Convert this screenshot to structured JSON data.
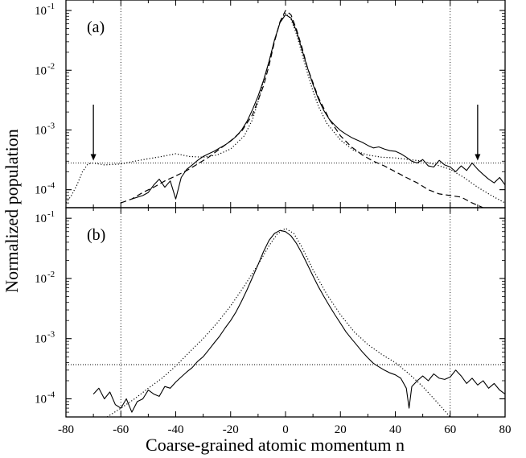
{
  "chart_data": [
    {
      "type": "line",
      "panel_label": "(a)",
      "y_scale": "log",
      "xlim": [
        -80,
        80
      ],
      "ylim": [
        5e-05,
        0.15
      ],
      "y_ticks": [
        "10-1",
        "10-2",
        "10-3",
        "10-4"
      ],
      "vlines": [
        -60,
        60
      ],
      "hline": 0.00028,
      "arrows_at_x": [
        -70,
        70
      ],
      "series": [
        {
          "style": "solid",
          "x": [
            -56,
            -52,
            -50,
            -48,
            -46,
            -44,
            -42,
            -40,
            -38,
            -36,
            -34,
            -32,
            -30,
            -28,
            -26,
            -24,
            -22,
            -20,
            -18,
            -16,
            -14,
            -12,
            -10,
            -8,
            -6,
            -4,
            -2,
            0,
            2,
            4,
            6,
            8,
            10,
            12,
            14,
            16,
            18,
            20,
            22,
            24,
            26,
            28,
            30,
            32,
            34,
            36,
            38,
            40,
            42,
            44,
            46,
            48,
            50,
            52,
            54,
            56,
            58,
            60,
            62,
            64,
            66,
            68,
            70,
            72,
            74,
            76,
            78,
            80
          ],
          "y": [
            7e-05,
            8e-05,
            9e-05,
            0.00012,
            0.00015,
            0.00011,
            0.00014,
            7e-05,
            0.00016,
            0.00022,
            0.00026,
            0.00031,
            0.00036,
            0.0004,
            0.00044,
            0.0005,
            0.00056,
            0.00065,
            0.00078,
            0.001,
            0.0014,
            0.0022,
            0.0037,
            0.0068,
            0.014,
            0.032,
            0.063,
            0.085,
            0.075,
            0.045,
            0.022,
            0.011,
            0.0058,
            0.0033,
            0.0021,
            0.0015,
            0.0012,
            0.00098,
            0.00085,
            0.00075,
            0.00068,
            0.00062,
            0.00055,
            0.0005,
            0.00052,
            0.00048,
            0.00045,
            0.00044,
            0.0004,
            0.00035,
            0.0003,
            0.00028,
            0.00032,
            0.00025,
            0.00024,
            0.00031,
            0.00026,
            0.00024,
            0.0002,
            0.00025,
            0.00021,
            0.00028,
            0.00022,
            0.00018,
            0.00015,
            0.00013,
            0.00016,
            0.00012
          ]
        },
        {
          "style": "dashed",
          "x": [
            -60,
            -56,
            -52,
            -48,
            -44,
            -40,
            -36,
            -32,
            -28,
            -24,
            -20,
            -16,
            -12,
            -8,
            -6,
            -4,
            -2,
            0,
            2,
            4,
            6,
            8,
            12,
            16,
            20,
            24,
            28,
            32,
            36,
            40,
            44,
            48,
            52,
            56,
            60,
            64,
            68,
            72
          ],
          "y": [
            6e-05,
            7e-05,
            9e-05,
            0.00011,
            0.00014,
            0.00017,
            0.00021,
            0.00027,
            0.00035,
            0.00048,
            0.00066,
            0.00095,
            0.0018,
            0.0055,
            0.012,
            0.03,
            0.065,
            0.1,
            0.085,
            0.048,
            0.024,
            0.011,
            0.0035,
            0.0015,
            0.0008,
            0.00052,
            0.00038,
            0.0003,
            0.00025,
            0.0002,
            0.00016,
            0.00013,
            0.0001,
            8.5e-05,
            8e-05,
            7.5e-05,
            6e-05,
            5e-05
          ]
        },
        {
          "style": "dotted",
          "x": [
            -80,
            -78,
            -76,
            -74,
            -72,
            -70,
            -66,
            -60,
            -55,
            -50,
            -45,
            -40,
            -35,
            -30,
            -25,
            -20,
            -15,
            -12,
            -10,
            -8,
            -6,
            -4,
            -2,
            0,
            2,
            4,
            6,
            8,
            10,
            12,
            15,
            20,
            25,
            30,
            35,
            40,
            45,
            50,
            55,
            60,
            65,
            70,
            75,
            80
          ],
          "y": [
            6e-05,
            8e-05,
            0.00012,
            0.0002,
            0.00027,
            0.00028,
            0.00026,
            0.00027,
            0.0003,
            0.00033,
            0.00036,
            0.0004,
            0.00036,
            0.00035,
            0.00038,
            0.00048,
            0.0008,
            0.0015,
            0.003,
            0.0065,
            0.014,
            0.032,
            0.065,
            0.09,
            0.072,
            0.04,
            0.019,
            0.009,
            0.0045,
            0.0025,
            0.0013,
            0.00068,
            0.00045,
            0.00038,
            0.00035,
            0.00034,
            0.00032,
            0.0003,
            0.00026,
            0.00022,
            0.00016,
            0.00011,
            8e-05,
            6e-05
          ]
        }
      ]
    },
    {
      "type": "line",
      "panel_label": "(b)",
      "y_scale": "log",
      "xlim": [
        -80,
        80
      ],
      "ylim": [
        5e-05,
        0.15
      ],
      "y_ticks": [
        "10-1",
        "10-2",
        "10-3",
        "10-4"
      ],
      "x_ticks": [
        "-80",
        "-60",
        "-40",
        "-20",
        "0",
        "20",
        "40",
        "60",
        "80"
      ],
      "xlabel": "Coarse-grained atomic momentum n",
      "ylabel": "Normalized population",
      "vlines": [
        -60,
        60
      ],
      "hline": 0.00037,
      "series": [
        {
          "style": "solid",
          "x": [
            -70,
            -68,
            -66,
            -64,
            -62,
            -60,
            -58,
            -56,
            -54,
            -52,
            -50,
            -48,
            -46,
            -44,
            -42,
            -40,
            -38,
            -36,
            -34,
            -32,
            -30,
            -28,
            -26,
            -24,
            -22,
            -20,
            -18,
            -16,
            -14,
            -12,
            -10,
            -8,
            -6,
            -4,
            -2,
            0,
            2,
            4,
            6,
            8,
            10,
            12,
            14,
            16,
            18,
            20,
            22,
            24,
            26,
            28,
            30,
            32,
            34,
            36,
            38,
            40,
            42,
            44,
            45,
            46,
            48,
            50,
            52,
            54,
            56,
            58,
            60,
            62,
            64,
            66,
            68,
            70,
            72,
            74,
            76,
            78,
            80
          ],
          "y": [
            0.00012,
            0.00015,
            0.0001,
            0.00013,
            8e-05,
            7e-05,
            0.0001,
            6e-05,
            9e-05,
            0.0001,
            0.00014,
            0.00012,
            0.00011,
            0.00016,
            0.00015,
            0.00019,
            0.00023,
            0.00028,
            0.00033,
            0.00042,
            0.0005,
            0.00065,
            0.00085,
            0.0011,
            0.0015,
            0.002,
            0.0028,
            0.0042,
            0.0065,
            0.0105,
            0.017,
            0.028,
            0.043,
            0.056,
            0.063,
            0.06,
            0.051,
            0.038,
            0.026,
            0.017,
            0.011,
            0.0073,
            0.005,
            0.0035,
            0.0025,
            0.0018,
            0.0013,
            0.001,
            0.00078,
            0.0006,
            0.00048,
            0.00039,
            0.00034,
            0.0003,
            0.00027,
            0.00025,
            0.00022,
            0.00015,
            7e-05,
            0.00016,
            0.0002,
            0.00024,
            0.0002,
            0.00026,
            0.00022,
            0.00021,
            0.00023,
            0.0003,
            0.00024,
            0.00018,
            0.00022,
            0.00017,
            0.0002,
            0.00015,
            0.00018,
            0.00014,
            0.00012
          ]
        },
        {
          "style": "dotted",
          "x": [
            -65,
            -60,
            -55,
            -50,
            -45,
            -40,
            -35,
            -30,
            -25,
            -20,
            -15,
            -10,
            -6,
            -3,
            0,
            3,
            6,
            10,
            15,
            20,
            25,
            30,
            35,
            40,
            45,
            50,
            55,
            60
          ],
          "y": [
            5e-05,
            7e-05,
            0.0001,
            0.00015,
            0.00022,
            0.00035,
            0.0006,
            0.001,
            0.0018,
            0.0035,
            0.0075,
            0.017,
            0.035,
            0.055,
            0.068,
            0.056,
            0.033,
            0.014,
            0.0055,
            0.0025,
            0.0013,
            0.0008,
            0.00055,
            0.0004,
            0.00026,
            0.00016,
            9e-05,
            5e-05
          ]
        }
      ]
    }
  ]
}
